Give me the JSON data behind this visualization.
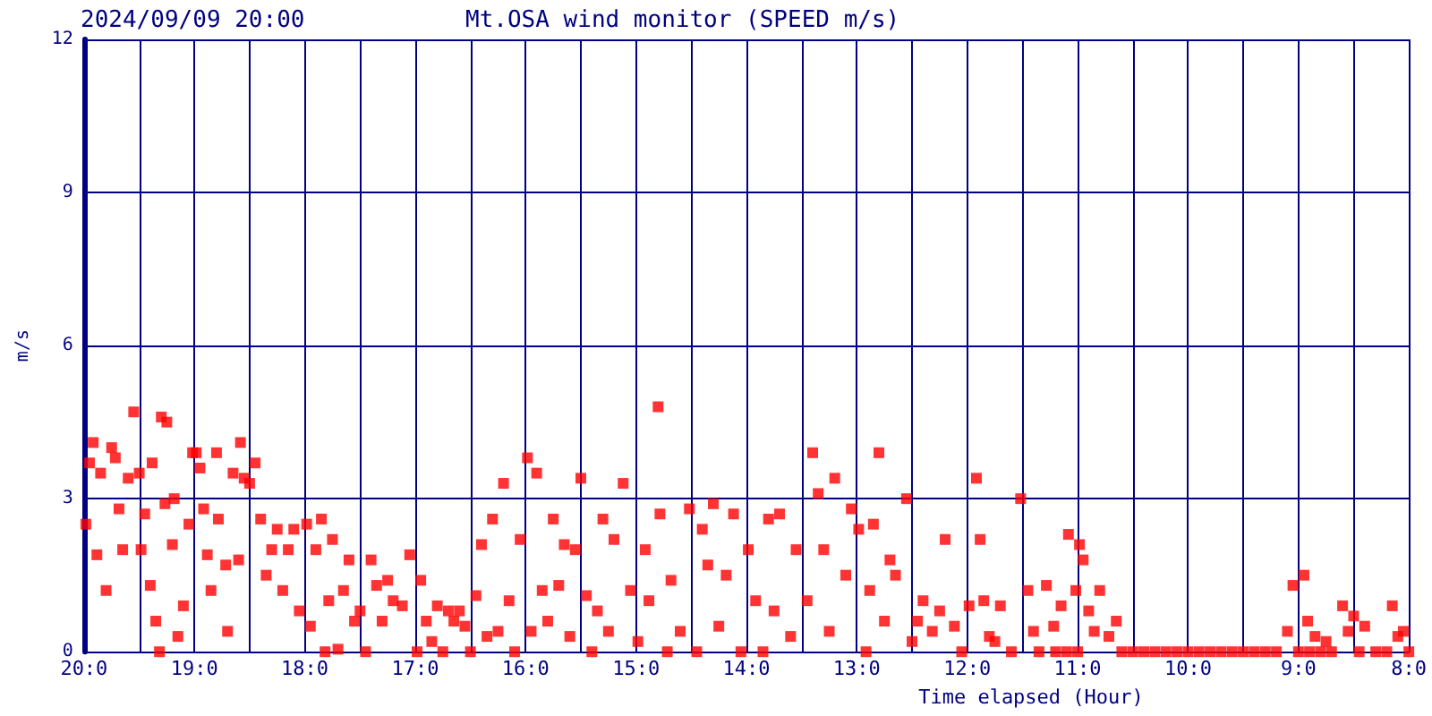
{
  "chart_data": {
    "type": "scatter",
    "title": "Mt.OSA wind monitor (SPEED m/s)",
    "subtitle": "2024/09/09 20:00",
    "xlabel": "Time elapsed (Hour)",
    "ylabel": "m/s",
    "xlim": [
      "2024-09-09T20:00",
      "2024-09-09T08:00"
    ],
    "ylim": [
      0,
      12
    ],
    "xticks": [
      {
        "value": "2024-09-09T20:00",
        "label": "20:0"
      },
      {
        "value": "2024-09-09T19:30",
        "label": null
      },
      {
        "value": "2024-09-09T19:00",
        "label": "19:0"
      },
      {
        "value": "2024-09-09T18:30",
        "label": null
      },
      {
        "value": "2024-09-09T18:00",
        "label": "18:0"
      },
      {
        "value": "2024-09-09T17:30",
        "label": null
      },
      {
        "value": "2024-09-09T17:00",
        "label": "17:0"
      },
      {
        "value": "2024-09-09T16:30",
        "label": null
      },
      {
        "value": "2024-09-09T16:00",
        "label": "16:0"
      },
      {
        "value": "2024-09-09T15:30",
        "label": null
      },
      {
        "value": "2024-09-09T15:00",
        "label": "15:0"
      },
      {
        "value": "2024-09-09T14:30",
        "label": null
      },
      {
        "value": "2024-09-09T14:00",
        "label": "14:0"
      },
      {
        "value": "2024-09-09T13:30",
        "label": null
      },
      {
        "value": "2024-09-09T13:00",
        "label": "13:0"
      },
      {
        "value": "2024-09-09T12:30",
        "label": null
      },
      {
        "value": "2024-09-09T12:00",
        "label": "12:0"
      },
      {
        "value": "2024-09-09T11:30",
        "label": null
      },
      {
        "value": "2024-09-09T11:00",
        "label": "11:0"
      },
      {
        "value": "2024-09-09T10:30",
        "label": null
      },
      {
        "value": "2024-09-09T10:00",
        "label": "10:0"
      },
      {
        "value": "2024-09-09T09:30",
        "label": null
      },
      {
        "value": "2024-09-09T09:00",
        "label": "9:0"
      },
      {
        "value": "2024-09-09T08:30",
        "label": null
      },
      {
        "value": "2024-09-09T08:00",
        "label": "8:0"
      }
    ],
    "yticks": [
      0,
      3,
      6,
      9,
      12
    ],
    "grid": true,
    "marker": "square",
    "series": [
      {
        "color": "#ff0000",
        "x": [
          "2024-09-09T19:59",
          "2024-09-09T19:57",
          "2024-09-09T19:55",
          "2024-09-09T19:53",
          "2024-09-09T19:51",
          "2024-09-09T19:48",
          "2024-09-09T19:45",
          "2024-09-09T19:43",
          "2024-09-09T19:41",
          "2024-09-09T19:39",
          "2024-09-09T19:36",
          "2024-09-09T19:33",
          "2024-09-09T19:30",
          "2024-09-09T19:29",
          "2024-09-09T19:27",
          "2024-09-09T19:24",
          "2024-09-09T19:23",
          "2024-09-09T19:21",
          "2024-09-09T19:19",
          "2024-09-09T19:18",
          "2024-09-09T19:16",
          "2024-09-09T19:15",
          "2024-09-09T19:12",
          "2024-09-09T19:11",
          "2024-09-09T19:09",
          "2024-09-09T19:06",
          "2024-09-09T19:03",
          "2024-09-09T19:01",
          "2024-09-09T18:59",
          "2024-09-09T18:57",
          "2024-09-09T18:55",
          "2024-09-09T18:53",
          "2024-09-09T18:51",
          "2024-09-09T18:48",
          "2024-09-09T18:47",
          "2024-09-09T18:43",
          "2024-09-09T18:42",
          "2024-09-09T18:39",
          "2024-09-09T18:36",
          "2024-09-09T18:35",
          "2024-09-09T18:33",
          "2024-09-09T18:30",
          "2024-09-09T18:27",
          "2024-09-09T18:24",
          "2024-09-09T18:21",
          "2024-09-09T18:18",
          "2024-09-09T18:15",
          "2024-09-09T18:12",
          "2024-09-09T18:09",
          "2024-09-09T18:06",
          "2024-09-09T18:03",
          "2024-09-09T17:59",
          "2024-09-09T17:57",
          "2024-09-09T17:54",
          "2024-09-09T17:51",
          "2024-09-09T17:49",
          "2024-09-09T17:47",
          "2024-09-09T17:45",
          "2024-09-09T17:42",
          "2024-09-09T17:39",
          "2024-09-09T17:36",
          "2024-09-09T17:33",
          "2024-09-09T17:30",
          "2024-09-09T17:27",
          "2024-09-09T17:24",
          "2024-09-09T17:21",
          "2024-09-09T17:18",
          "2024-09-09T17:15",
          "2024-09-09T17:12",
          "2024-09-09T17:07",
          "2024-09-09T17:03",
          "2024-09-09T16:59",
          "2024-09-09T16:57",
          "2024-09-09T16:54",
          "2024-09-09T16:51",
          "2024-09-09T16:48",
          "2024-09-09T16:45",
          "2024-09-09T16:42",
          "2024-09-09T16:39",
          "2024-09-09T16:36",
          "2024-09-09T16:33",
          "2024-09-09T16:30",
          "2024-09-09T16:27",
          "2024-09-09T16:24",
          "2024-09-09T16:21",
          "2024-09-09T16:18",
          "2024-09-09T16:15",
          "2024-09-09T16:12",
          "2024-09-09T16:09",
          "2024-09-09T16:06",
          "2024-09-09T16:03",
          "2024-09-09T15:59",
          "2024-09-09T15:57",
          "2024-09-09T15:54",
          "2024-09-09T15:51",
          "2024-09-09T15:48",
          "2024-09-09T15:45",
          "2024-09-09T15:42",
          "2024-09-09T15:39",
          "2024-09-09T15:36",
          "2024-09-09T15:33",
          "2024-09-09T15:30",
          "2024-09-09T15:27",
          "2024-09-09T15:24",
          "2024-09-09T15:21",
          "2024-09-09T15:18",
          "2024-09-09T15:15",
          "2024-09-09T15:12",
          "2024-09-09T15:07",
          "2024-09-09T15:03",
          "2024-09-09T14:59",
          "2024-09-09T14:55",
          "2024-09-09T14:53",
          "2024-09-09T14:48",
          "2024-09-09T14:47",
          "2024-09-09T14:43",
          "2024-09-09T14:41",
          "2024-09-09T14:36",
          "2024-09-09T14:31",
          "2024-09-09T14:27",
          "2024-09-09T14:24",
          "2024-09-09T14:21",
          "2024-09-09T14:18",
          "2024-09-09T14:15",
          "2024-09-09T14:11",
          "2024-09-09T14:07",
          "2024-09-09T14:03",
          "2024-09-09T13:59",
          "2024-09-09T13:55",
          "2024-09-09T13:51",
          "2024-09-09T13:48",
          "2024-09-09T13:45",
          "2024-09-09T13:42",
          "2024-09-09T13:36",
          "2024-09-09T13:33",
          "2024-09-09T13:27",
          "2024-09-09T13:24",
          "2024-09-09T13:21",
          "2024-09-09T13:18",
          "2024-09-09T13:15",
          "2024-09-09T13:12",
          "2024-09-09T13:06",
          "2024-09-09T13:03",
          "2024-09-09T12:59",
          "2024-09-09T12:55",
          "2024-09-09T12:53",
          "2024-09-09T12:51",
          "2024-09-09T12:48",
          "2024-09-09T12:45",
          "2024-09-09T12:42",
          "2024-09-09T12:39",
          "2024-09-09T12:33",
          "2024-09-09T12:30",
          "2024-09-09T12:27",
          "2024-09-09T12:24",
          "2024-09-09T12:19",
          "2024-09-09T12:15",
          "2024-09-09T12:12",
          "2024-09-09T12:07",
          "2024-09-09T12:03",
          "2024-09-09T11:59",
          "2024-09-09T11:55",
          "2024-09-09T11:53",
          "2024-09-09T11:51",
          "2024-09-09T11:48",
          "2024-09-09T11:45",
          "2024-09-09T11:42",
          "2024-09-09T11:36",
          "2024-09-09T11:31",
          "2024-09-09T11:27",
          "2024-09-09T11:24",
          "2024-09-09T11:21",
          "2024-09-09T11:17",
          "2024-09-09T11:13",
          "2024-09-09T11:09",
          "2024-09-09T11:05",
          "2024-09-09T11:01",
          "2024-09-09T10:59",
          "2024-09-09T10:57",
          "2024-09-09T10:54",
          "2024-09-09T10:51",
          "2024-09-09T10:48",
          "2024-09-09T10:43",
          "2024-09-09T10:39",
          "2024-09-09T11:12",
          "2024-09-09T11:06",
          "2024-09-09T11:00",
          "2024-09-09T10:36",
          "2024-09-09T10:30",
          "2024-09-09T10:24",
          "2024-09-09T10:18",
          "2024-09-09T10:12",
          "2024-09-09T10:06",
          "2024-09-09T10:00",
          "2024-09-09T09:54",
          "2024-09-09T09:48",
          "2024-09-09T09:42",
          "2024-09-09T09:36",
          "2024-09-09T09:30",
          "2024-09-09T09:24",
          "2024-09-09T09:18",
          "2024-09-09T09:12",
          "2024-09-09T09:06",
          "2024-09-09T09:03",
          "2024-09-09T09:00",
          "2024-09-09T08:57",
          "2024-09-09T08:55",
          "2024-09-09T08:54",
          "2024-09-09T08:51",
          "2024-09-09T08:48",
          "2024-09-09T08:45",
          "2024-09-09T08:42",
          "2024-09-09T08:36",
          "2024-09-09T08:33",
          "2024-09-09T08:30",
          "2024-09-09T08:27",
          "2024-09-09T08:24",
          "2024-09-09T08:18",
          "2024-09-09T08:12",
          "2024-09-09T08:09",
          "2024-09-09T08:06",
          "2024-09-09T08:03",
          "2024-09-09T08:00"
        ],
        "values": [
          2.5,
          3.7,
          4.1,
          1.9,
          3.5,
          1.2,
          4.0,
          3.8,
          2.8,
          2.0,
          3.4,
          4.7,
          3.5,
          2.0,
          2.7,
          1.3,
          3.7,
          0.6,
          0,
          4.6,
          2.9,
          4.5,
          2.1,
          3.0,
          0.3,
          0.9,
          2.5,
          3.9,
          3.9,
          3.6,
          2.8,
          1.9,
          1.2,
          3.9,
          2.6,
          1.7,
          0.4,
          3.5,
          1.8,
          4.1,
          3.4,
          3.3,
          3.7,
          2.6,
          1.5,
          2.0,
          2.4,
          1.2,
          2.0,
          2.4,
          0.8,
          2.5,
          0.5,
          2.0,
          2.6,
          0,
          1.0,
          2.2,
          0.05,
          1.2,
          1.8,
          0.6,
          0.8,
          0,
          1.8,
          1.3,
          0.6,
          1.4,
          1.0,
          0.9,
          1.9,
          0,
          1.4,
          0.6,
          0.2,
          0.9,
          0,
          0.8,
          0.6,
          0.8,
          0.5,
          0,
          1.1,
          2.1,
          0.3,
          2.6,
          0.4,
          3.3,
          1.0,
          0,
          2.2,
          3.8,
          0.4,
          3.5,
          1.2,
          0.6,
          2.6,
          1.3,
          2.1,
          0.3,
          2.0,
          3.4,
          1.1,
          0,
          0.8,
          2.6,
          0.4,
          2.2,
          3.3,
          1.2,
          0.2,
          2.0,
          1.0,
          4.8,
          2.7,
          0,
          1.4,
          0.4,
          2.8,
          0,
          2.4,
          1.7,
          2.9,
          0.5,
          1.5,
          2.7,
          0,
          2.0,
          1.0,
          0,
          2.6,
          0.8,
          2.7,
          0.3,
          2.0,
          1.0,
          3.9,
          3.1,
          2.0,
          0.4,
          3.4,
          1.5,
          2.8,
          2.4,
          0,
          1.2,
          2.5,
          3.9,
          0.6,
          1.8,
          1.5,
          3.0,
          0.2,
          0.6,
          1.0,
          0.4,
          0.8,
          2.2,
          0.5,
          0,
          0.9,
          3.4,
          2.2,
          1.0,
          0.3,
          0.2,
          0.9,
          0,
          3.0,
          1.2,
          0.4,
          0,
          1.3,
          0.5,
          0.9,
          2.3,
          1.2,
          2.1,
          1.8,
          0.8,
          0.4,
          1.2,
          0.3,
          0.6,
          0,
          0,
          0,
          0,
          0,
          0,
          0,
          0,
          0,
          0,
          0,
          0,
          0,
          0,
          0,
          0,
          0,
          0,
          0.4,
          1.3,
          0,
          1.5,
          0.6,
          0,
          0.3,
          0,
          0.2,
          0,
          0.9,
          0.4,
          0.7,
          0,
          0.5,
          0,
          0,
          0.9,
          0.3,
          0.4,
          0
        ]
      }
    ]
  }
}
